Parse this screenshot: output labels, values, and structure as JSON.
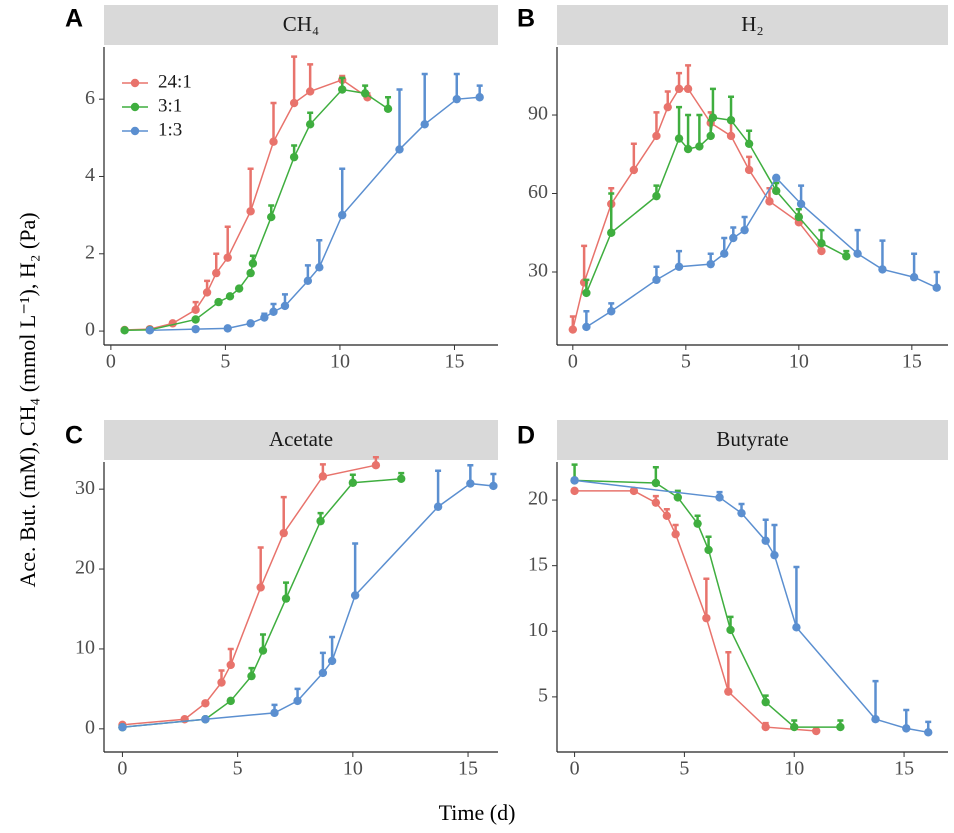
{
  "y_label": "Ace. But. (mM),  CH₄ (mmol L⁻¹),  H₂ (Pa)",
  "x_label": "Time (d)",
  "chart_data": [
    {
      "type": "line",
      "panel": "A",
      "title": "CH₄",
      "legend": "top-left",
      "xlim": [
        -0.3,
        16.9
      ],
      "xticks": [
        0,
        5,
        10,
        15
      ],
      "ylim": [
        -0.36,
        7.35
      ],
      "yticks": [
        0,
        2,
        4,
        6
      ],
      "series": [
        {
          "name": "24:1",
          "color": "#e8736c",
          "x": [
            0.6,
            1.7,
            2.7,
            3.7,
            4.2,
            4.6,
            5.1,
            6.1,
            7.1,
            8,
            8.7,
            10.1,
            11.2
          ],
          "values": [
            0.03,
            0.05,
            0.2,
            0.55,
            1.0,
            1.5,
            1.9,
            3.1,
            4.9,
            5.9,
            6.2,
            6.5,
            6.05
          ],
          "errors": [
            null,
            null,
            null,
            0.2,
            0.3,
            0.5,
            0.8,
            1.1,
            1.0,
            1.2,
            0.7,
            0.1,
            0.1
          ]
        },
        {
          "name": "3:1",
          "color": "#3fae3f",
          "x": [
            0.6,
            1.7,
            3.7,
            4.7,
            5.2,
            5.6,
            6.1,
            6.2,
            7,
            8,
            8.7,
            10.1,
            11.1,
            12.1
          ],
          "values": [
            0.02,
            0.03,
            0.3,
            0.75,
            0.9,
            1.1,
            1.5,
            1.75,
            2.95,
            4.5,
            5.35,
            6.25,
            6.15,
            5.75
          ],
          "errors": [
            null,
            null,
            null,
            null,
            null,
            null,
            null,
            0.2,
            0.3,
            0.3,
            0.3,
            0.3,
            0.2,
            0.3
          ]
        },
        {
          "name": "1:3",
          "color": "#5b8fd0",
          "x": [
            1.7,
            3.7,
            5.1,
            6.1,
            6.7,
            7.1,
            7.6,
            8.6,
            9.1,
            10.1,
            12.6,
            13.7,
            15.1,
            16.1
          ],
          "values": [
            0.02,
            0.05,
            0.07,
            0.2,
            0.35,
            0.5,
            0.65,
            1.3,
            1.65,
            3.0,
            4.7,
            5.35,
            6.0,
            6.05
          ],
          "errors": [
            null,
            null,
            null,
            null,
            0.1,
            0.2,
            0.3,
            0.4,
            0.7,
            1.2,
            1.55,
            1.3,
            0.65,
            0.3
          ]
        }
      ]
    },
    {
      "type": "line",
      "panel": "B",
      "title": "H₂",
      "xlim": [
        -0.7,
        16.6
      ],
      "xticks": [
        0,
        5,
        10,
        15
      ],
      "ylim": [
        2.1,
        116
      ],
      "yticks": [
        30,
        60,
        90
      ],
      "series": [
        {
          "name": "24:1",
          "color": "#e8736c",
          "x": [
            0,
            0.5,
            1.7,
            2.7,
            3.7,
            4.2,
            4.7,
            5.1,
            6.1,
            7,
            7.8,
            8.7,
            10,
            11
          ],
          "values": [
            8,
            26,
            56,
            69,
            82,
            93,
            100,
            100,
            87,
            82,
            69,
            57,
            49,
            38
          ],
          "errors": [
            5,
            14,
            6,
            10,
            9,
            6,
            6,
            9,
            4,
            6,
            5,
            5,
            3,
            null
          ]
        },
        {
          "name": "3:1",
          "color": "#3fae3f",
          "x": [
            0.6,
            1.7,
            3.7,
            4.7,
            5.1,
            5.6,
            6.1,
            6.2,
            7,
            7.8,
            9,
            10,
            11,
            12.1
          ],
          "values": [
            22,
            45,
            59,
            81,
            77,
            78,
            82,
            89,
            88,
            79,
            61,
            51,
            41,
            36
          ],
          "errors": [
            5,
            15,
            4,
            12,
            13,
            12,
            6,
            11,
            9,
            5,
            3,
            3,
            5,
            2
          ]
        },
        {
          "name": "1:3",
          "color": "#5b8fd0",
          "x": [
            0.6,
            1.7,
            3.7,
            4.7,
            6.1,
            6.7,
            7.1,
            7.6,
            9,
            10.1,
            12.6,
            13.7,
            15.1,
            16.1
          ],
          "values": [
            9,
            15,
            27,
            32,
            33,
            37,
            43,
            46,
            66,
            56,
            37,
            31,
            28,
            24
          ],
          "errors": [
            6,
            3,
            5,
            6,
            4,
            6,
            4,
            5,
            null,
            7,
            9,
            11,
            9,
            6
          ]
        }
      ]
    },
    {
      "type": "line",
      "panel": "C",
      "title": "Acetate",
      "xlim": [
        -0.8,
        16.3
      ],
      "xticks": [
        0,
        5,
        10,
        15
      ],
      "ylim": [
        -2.9,
        33.4
      ],
      "yticks": [
        0,
        10,
        20,
        30
      ],
      "series": [
        {
          "name": "24:1",
          "color": "#e8736c",
          "x": [
            0,
            2.7,
            3.6,
            4.3,
            4.7,
            6,
            7,
            8.7,
            11
          ],
          "values": [
            0.5,
            1.2,
            3.2,
            5.8,
            8,
            17.7,
            24.5,
            31.6,
            33
          ],
          "errors": [
            null,
            null,
            null,
            1.5,
            2,
            5,
            4.5,
            1.5,
            1
          ]
        },
        {
          "name": "3:1",
          "color": "#3fae3f",
          "x": [
            0,
            3.6,
            4.7,
            5.6,
            6.1,
            7.1,
            8.6,
            10,
            12.1
          ],
          "values": [
            0.2,
            1.2,
            3.5,
            6.6,
            9.8,
            16.3,
            26,
            30.8,
            31.3
          ],
          "errors": [
            null,
            null,
            null,
            1,
            2,
            2,
            1,
            1,
            0.7
          ]
        },
        {
          "name": "1:3",
          "color": "#5b8fd0",
          "x": [
            0,
            3.6,
            6.6,
            7.6,
            8.7,
            9.1,
            10.1,
            13.7,
            15.1,
            16.1
          ],
          "values": [
            0.2,
            1.2,
            2,
            3.5,
            7,
            8.5,
            16.7,
            27.8,
            30.7,
            30.4
          ],
          "errors": [
            null,
            null,
            1,
            1.5,
            2.5,
            3,
            6.5,
            4.5,
            2.3,
            1.5
          ]
        }
      ]
    },
    {
      "type": "line",
      "panel": "D",
      "title": "Butyrate",
      "xlim": [
        -0.8,
        17
      ],
      "xticks": [
        0,
        5,
        10,
        15
      ],
      "ylim": [
        0.8,
        22.9
      ],
      "yticks": [
        5,
        10,
        15,
        20
      ],
      "series": [
        {
          "name": "24:1",
          "color": "#e8736c",
          "x": [
            0,
            2.7,
            3.7,
            4.2,
            4.6,
            6,
            7,
            8.7,
            11
          ],
          "values": [
            20.7,
            20.7,
            19.8,
            18.8,
            17.4,
            11,
            5.4,
            2.7,
            2.4
          ],
          "errors": [
            null,
            null,
            0.5,
            0.5,
            0.7,
            3,
            3,
            0.3,
            null
          ]
        },
        {
          "name": "3:1",
          "color": "#3fae3f",
          "x": [
            0,
            3.7,
            4.7,
            5.6,
            6.1,
            7.1,
            8.7,
            10,
            12.1
          ],
          "values": [
            21.5,
            21.3,
            20.2,
            18.2,
            16.2,
            10.1,
            4.6,
            2.7,
            2.7
          ],
          "errors": [
            1.2,
            1.2,
            0.5,
            0.6,
            1,
            1,
            0.5,
            0.5,
            0.5
          ]
        },
        {
          "name": "1:3",
          "color": "#5b8fd0",
          "x": [
            0,
            6.6,
            7.6,
            8.7,
            9.1,
            10.1,
            13.7,
            15.1,
            16.1
          ],
          "values": [
            21.5,
            20.2,
            19,
            16.9,
            15.8,
            10.3,
            3.3,
            2.6,
            2.3
          ],
          "errors": [
            null,
            0.4,
            0.7,
            1.6,
            2.3,
            4.6,
            2.9,
            1.4,
            0.8
          ]
        }
      ]
    }
  ]
}
